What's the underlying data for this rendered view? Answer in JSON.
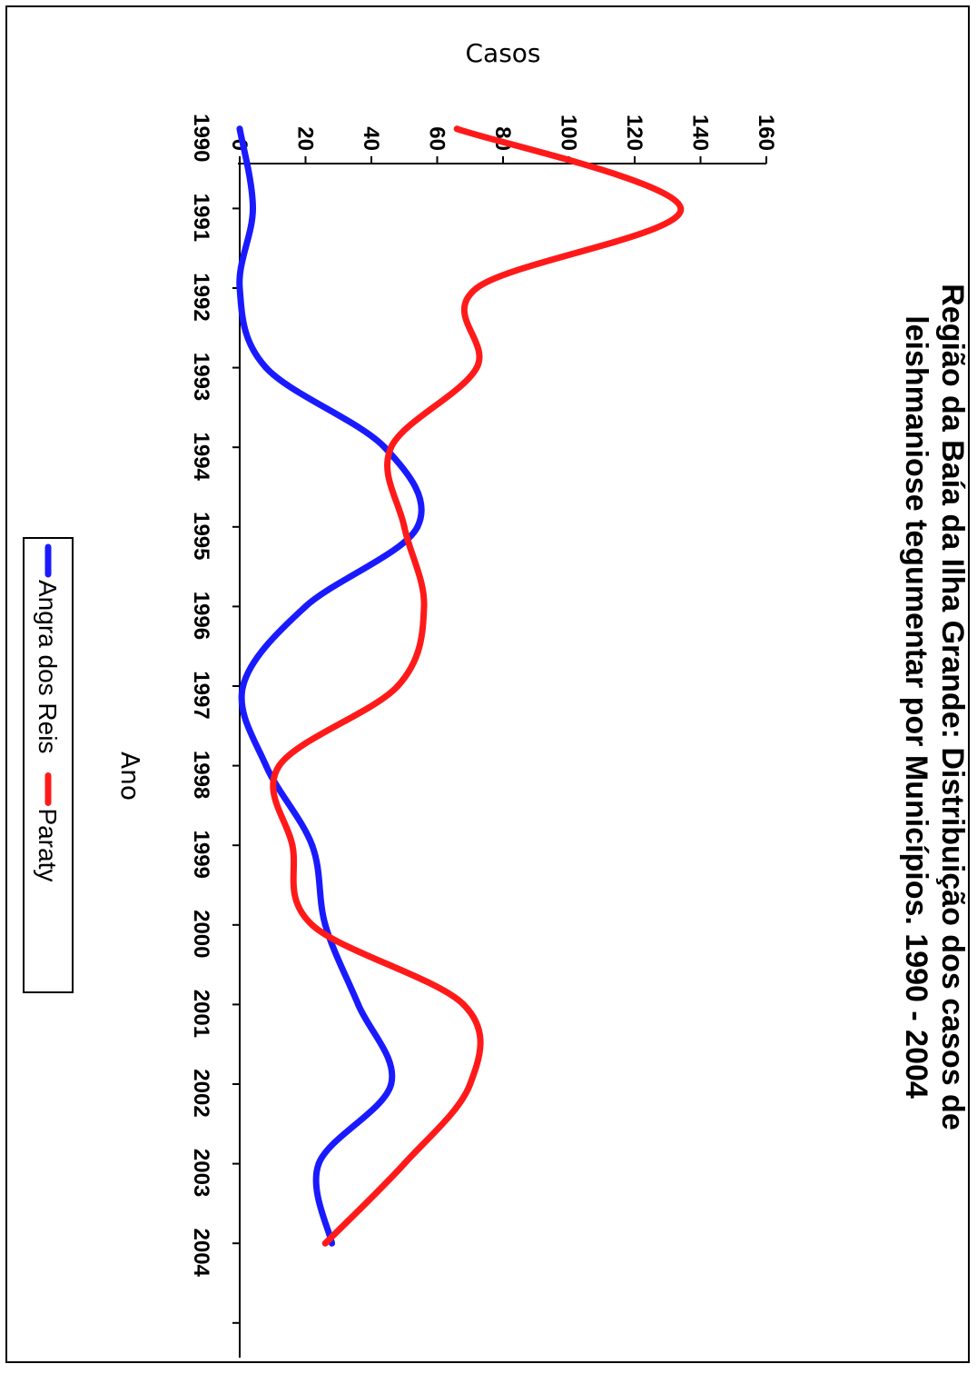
{
  "chart_data": {
    "type": "line",
    "title": "Região da Baía da Ilha Grande: Distribuição dos casos de leishmaniose tegumentar por Municípios. 1990 - 2004",
    "title_lines": [
      "Região da Baía da Ilha Grande: Distribuição dos casos de",
      "leishmaniose tegumentar por Municípios. 1990 - 2004"
    ],
    "xlabel": "Ano",
    "ylabel": "Casos",
    "categories": [
      "1990",
      "1991",
      "1992",
      "1993",
      "1994",
      "1995",
      "1996",
      "1997",
      "1998",
      "1999",
      "2000",
      "2001",
      "2002",
      "2003",
      "2004"
    ],
    "ylim": [
      0,
      160
    ],
    "yticks": [
      0,
      20,
      40,
      60,
      80,
      100,
      120,
      140,
      160
    ],
    "series": [
      {
        "name": "Angra dos Reis",
        "color": "#1a1aff",
        "values": [
          0,
          4,
          0,
          8,
          44,
          54,
          20,
          1,
          8,
          22,
          26,
          36,
          46,
          24,
          28
        ]
      },
      {
        "name": "Paraty",
        "color": "#ff1a1a",
        "values": [
          66,
          134,
          72,
          72,
          46,
          50,
          56,
          48,
          12,
          16,
          22,
          68,
          70,
          50,
          26
        ]
      }
    ],
    "legend": {
      "position": "bottom"
    },
    "grid": false
  }
}
